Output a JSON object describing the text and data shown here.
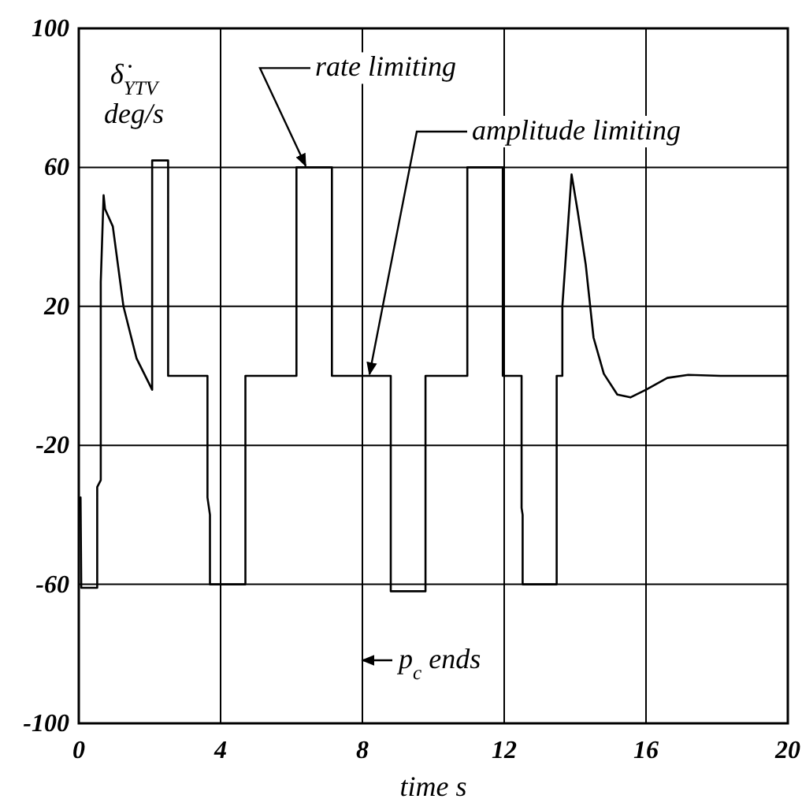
{
  "chart_data": {
    "type": "line",
    "xlabel": "time s",
    "ylabel": "δ̇$_{YTV}$ deg/s",
    "xlim": [
      0,
      20
    ],
    "xticks": [
      0,
      4,
      8,
      12,
      16,
      20
    ],
    "ylim": [
      -100,
      100
    ],
    "yticks": [
      -100,
      -60,
      -20,
      20,
      60,
      100
    ],
    "grid": true,
    "line_style": "solid",
    "marker": "none",
    "annotations": [
      {
        "text": "rate limiting",
        "x": 6.4,
        "y": 60
      },
      {
        "text": "amplitude limiting",
        "x": 8.2,
        "y": 0
      },
      "p$_{c}$ ends"
    ],
    "series": [
      {
        "color": "#000000",
        "x": [
          0.05,
          0.07,
          0.52,
          0.52,
          0.62,
          0.62,
          0.7,
          0.74,
          0.96,
          1.26,
          1.63,
          2.07,
          2.07,
          2.52,
          2.52,
          3.63,
          3.63,
          3.7,
          3.7,
          4.7,
          4.7,
          6.14,
          6.14,
          7.14,
          7.14,
          8.8,
          8.8,
          9.78,
          9.78,
          10.96,
          10.96,
          11.96,
          11.96,
          12.49,
          12.49,
          12.52,
          12.52,
          13.48,
          13.48,
          13.64,
          13.64,
          13.9,
          14.07,
          14.3,
          14.52,
          14.81,
          15.19,
          15.56,
          16,
          16.6,
          17.19,
          18.1,
          20
        ],
        "values": [
          -35,
          -61,
          -61,
          -32,
          -30,
          27,
          52,
          48,
          43,
          20,
          5,
          -4,
          62,
          62,
          0,
          0,
          -35,
          -40,
          -60,
          -60,
          0,
          0,
          60,
          60,
          0,
          0,
          -62,
          -62,
          0,
          0,
          60,
          60,
          0,
          0,
          -38,
          -40,
          -60,
          -60,
          0,
          0,
          20,
          58,
          47.5,
          32,
          11,
          0.6,
          -5.4,
          -6.2,
          -4,
          -0.6,
          0.3,
          0,
          0
        ]
      }
    ]
  }
}
